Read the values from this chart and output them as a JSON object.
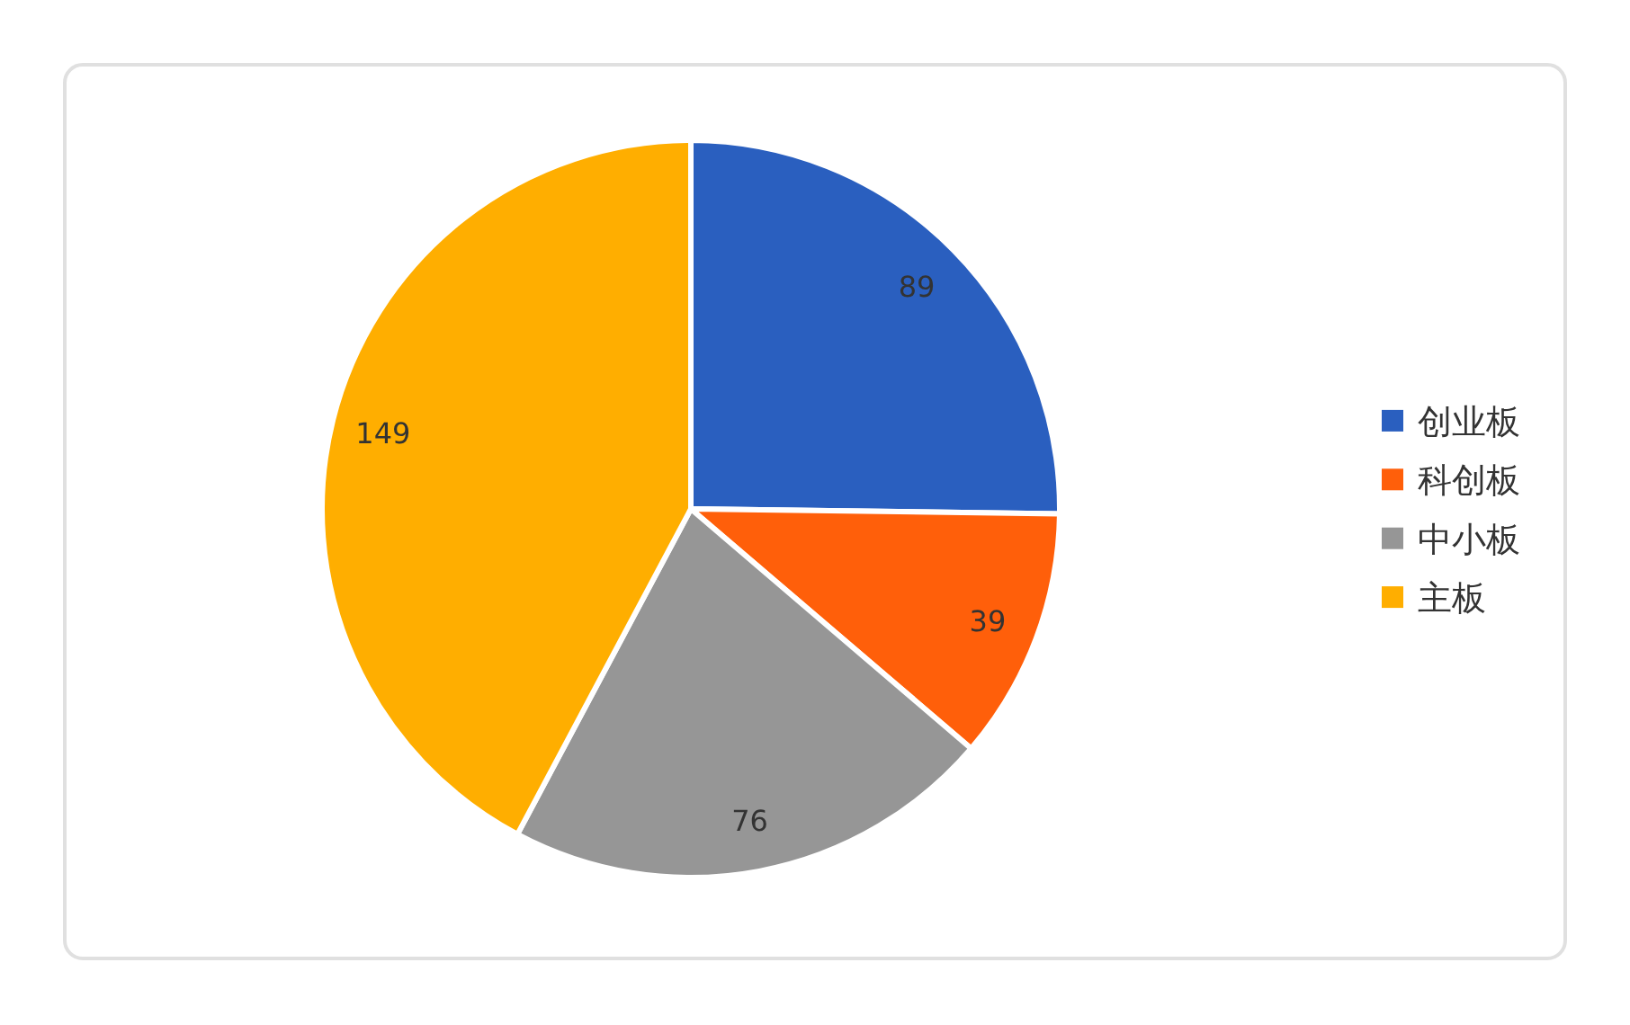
{
  "chart_data": {
    "type": "pie",
    "categories": [
      "创业板",
      "科创板",
      "中小板",
      "主板"
    ],
    "values": [
      89,
      39,
      76,
      149
    ],
    "colors": [
      "#2a5fbf",
      "#ff5f0a",
      "#969696",
      "#ffae00"
    ],
    "data_labels": true,
    "legend": "right"
  }
}
